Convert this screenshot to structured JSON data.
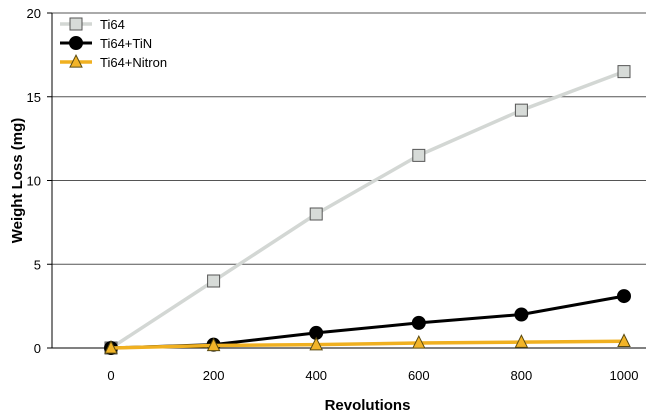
{
  "chart_data": {
    "type": "line",
    "title": "",
    "xlabel": "Revolutions",
    "ylabel": "Weight Loss (mg)",
    "x": [
      0,
      200,
      400,
      600,
      800,
      1000
    ],
    "x_tick_labels": [
      "0",
      "200",
      "400",
      "600",
      "800",
      "1000"
    ],
    "y_tick_labels": [
      "0",
      "5",
      "10",
      "15",
      "20"
    ],
    "y_ticks": [
      0,
      5,
      10,
      15,
      20
    ],
    "ylim": [
      0,
      20
    ],
    "grid": "horizontal",
    "legend_position": "top-left",
    "series": [
      {
        "name": "Ti64",
        "marker": "square",
        "line_color": "#d3d7d4",
        "marker_fill": "#d7dbd8",
        "marker_stroke": "#555555",
        "values": [
          0,
          4.0,
          8.0,
          11.5,
          14.2,
          16.5
        ]
      },
      {
        "name": "Ti64+TiN",
        "marker": "circle",
        "line_color": "#000000",
        "marker_fill": "#000000",
        "marker_stroke": "#000000",
        "values": [
          0,
          0.2,
          0.9,
          1.5,
          2.0,
          3.1
        ]
      },
      {
        "name": "Ti64+Nitron",
        "marker": "triangle",
        "line_color": "#f0b020",
        "marker_fill": "#f2b428",
        "marker_stroke": "#5a4a10",
        "values": [
          0,
          0.15,
          0.2,
          0.3,
          0.35,
          0.4
        ]
      }
    ]
  }
}
